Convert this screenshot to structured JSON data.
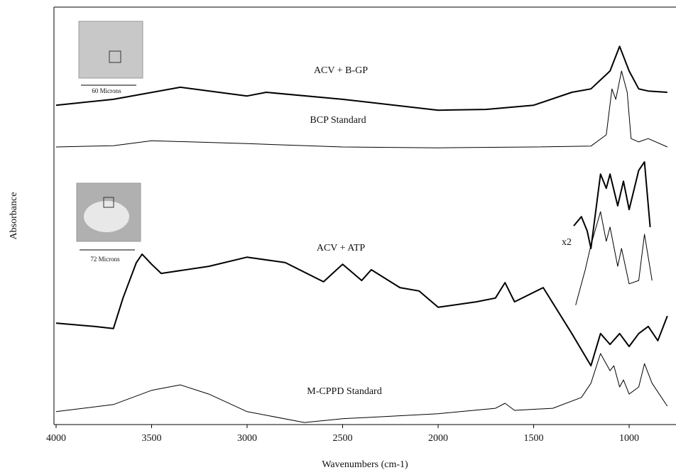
{
  "chart_data": {
    "type": "line",
    "xlabel": "Wavenumbers (cm-1)",
    "ylabel": "Absorbance",
    "xlim": [
      4000,
      760
    ],
    "ylim": [
      0,
      100
    ],
    "xticks": [
      4000,
      3500,
      3000,
      2500,
      2000,
      1500,
      1000
    ],
    "series": [
      {
        "name": "ACV + B-GP",
        "color": "#000000",
        "x": [
          4000,
          3700,
          3350,
          3000,
          2900,
          2500,
          2000,
          1750,
          1500,
          1300,
          1200,
          1100,
          1050,
          1000,
          950,
          900,
          800
        ],
        "values": [
          76.5,
          77.9,
          80.8,
          78.7,
          79.6,
          77.9,
          75.3,
          75.5,
          76.5,
          79.6,
          80.4,
          84.7,
          90.6,
          84.7,
          80.4,
          79.9,
          79.6
        ]
      },
      {
        "name": "BCP Standard",
        "color": "#000000",
        "x": [
          4000,
          3700,
          3500,
          3000,
          2500,
          2000,
          1500,
          1200,
          1120,
          1090,
          1070,
          1040,
          1010,
          990,
          950,
          900,
          800
        ],
        "values": [
          66.5,
          66.8,
          68,
          67.3,
          66.5,
          66.3,
          66.5,
          66.7,
          69.4,
          80.4,
          77.9,
          84.7,
          79.6,
          68.5,
          67.7,
          68.5,
          66.5
        ]
      },
      {
        "name": "ACV + ATP",
        "color": "#000000",
        "x": [
          4000,
          3800,
          3700,
          3650,
          3580,
          3550,
          3500,
          3450,
          3200,
          3000,
          2800,
          2600,
          2500,
          2400,
          2350,
          2200,
          2100,
          2000,
          1800,
          1700,
          1650,
          1600,
          1450,
          1300,
          1200,
          1150,
          1100,
          1050,
          1000,
          950,
          900,
          850,
          800
        ],
        "values": [
          24.3,
          23.5,
          23,
          30.3,
          38.8,
          40.8,
          38.4,
          36.2,
          37.9,
          40.1,
          38.8,
          34.2,
          38.4,
          34.5,
          37.1,
          32.8,
          32,
          28.1,
          29.4,
          30.3,
          34,
          29.4,
          32.8,
          21.8,
          14.1,
          21.8,
          19.2,
          21.8,
          18.7,
          21.8,
          23.5,
          20.1,
          26
        ]
      },
      {
        "name": "M-CPPD Standard",
        "color": "#000000",
        "x": [
          4000,
          3700,
          3500,
          3350,
          3200,
          3000,
          2700,
          2500,
          2000,
          1700,
          1650,
          1600,
          1400,
          1250,
          1200,
          1150,
          1100,
          1080,
          1050,
          1030,
          1000,
          950,
          920,
          880,
          800
        ],
        "values": [
          3.1,
          4.8,
          8.2,
          9.5,
          7.3,
          3.1,
          0.5,
          1.4,
          2.6,
          3.9,
          5.1,
          3.4,
          3.9,
          6.5,
          9.9,
          17,
          12.9,
          14.1,
          9,
          10.7,
          7.3,
          9,
          14.6,
          9.9,
          4.4
        ]
      },
      {
        "color": "#000000",
        "x": [
          1290,
          1250,
          1220,
          1200,
          1150,
          1120,
          1100,
          1060,
          1030,
          1000,
          950,
          920,
          890
        ],
        "values": [
          47.6,
          49.8,
          46.4,
          42.2,
          60,
          56.6,
          60,
          52.4,
          58.3,
          51.5,
          60.9,
          62.9,
          47.3
        ]
      },
      {
        "color": "#000000",
        "x": [
          1280,
          1230,
          1200,
          1150,
          1120,
          1100,
          1060,
          1040,
          1000,
          950,
          920,
          880
        ],
        "values": [
          28.6,
          37.1,
          43,
          51,
          43.9,
          47.3,
          37.9,
          42.2,
          33.7,
          34.5,
          45.6,
          34.5
        ]
      }
    ],
    "annotations": [
      "x2",
      "60 Microns",
      "72 Microns"
    ]
  }
}
